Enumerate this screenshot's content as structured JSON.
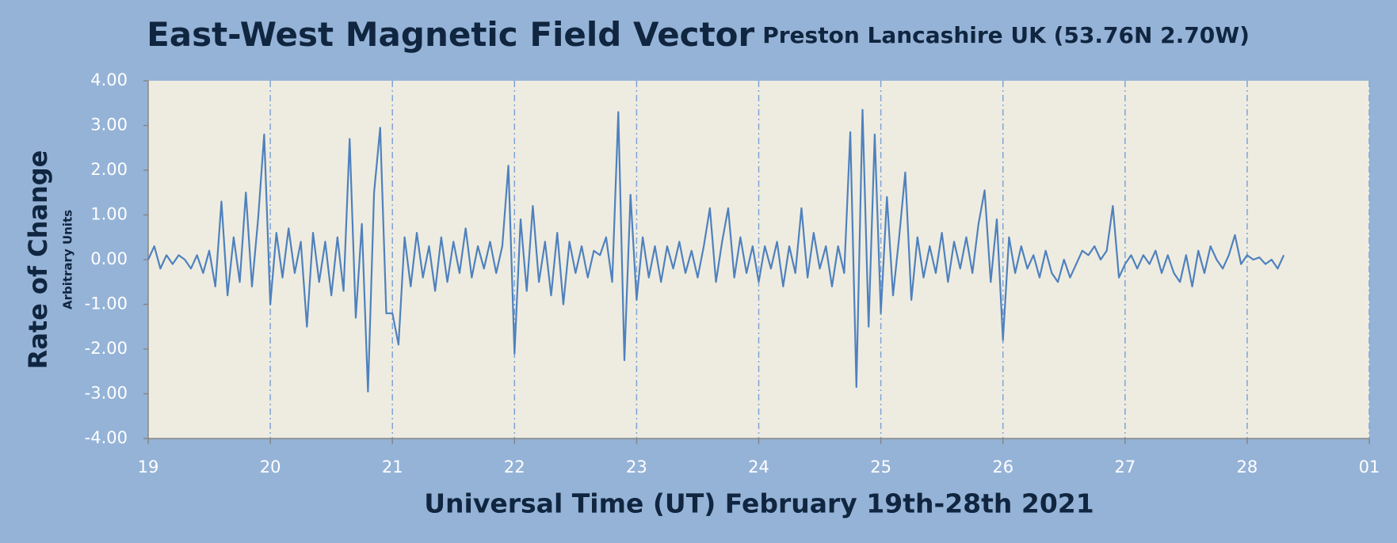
{
  "chart_data": {
    "type": "line",
    "title": "East-West Magnetic Field Vector",
    "subtitle": "Preston Lancashire UK (53.76N 2.70W)",
    "y_label": "Rate of Change",
    "y_sublabel": "Arbitrary Units",
    "x_label": "Universal Time (UT) February 19th-28th 2021",
    "color": "#4F81BD",
    "grid": true,
    "xlim": [
      19,
      29
    ],
    "xticks": [
      19,
      20,
      21,
      22,
      23,
      24,
      25,
      26,
      27,
      28,
      {
        "value": 29,
        "label": "01"
      }
    ],
    "ylim": [
      -4,
      4
    ],
    "yticks": [
      {
        "value": 4,
        "label": "4.00"
      },
      {
        "value": 3,
        "label": "3.00"
      },
      {
        "value": 2,
        "label": "2.00"
      },
      {
        "value": 1,
        "label": "1.00"
      },
      {
        "value": 0,
        "label": "0.00"
      },
      {
        "value": -1,
        "label": "-1.00"
      },
      {
        "value": -2,
        "label": "-2.00"
      },
      {
        "value": -3,
        "label": "-3.00"
      },
      {
        "value": -4,
        "label": "-4.00"
      }
    ],
    "x": [
      19,
      19.05,
      19.1,
      19.15,
      19.2,
      19.25,
      19.3,
      19.35,
      19.4,
      19.45,
      19.5,
      19.55,
      19.6,
      19.65,
      19.7,
      19.75,
      19.8,
      19.85,
      19.9,
      19.95,
      20,
      20.05,
      20.1,
      20.15,
      20.2,
      20.25,
      20.3,
      20.35,
      20.4,
      20.45,
      20.5,
      20.55,
      20.6,
      20.65,
      20.7,
      20.75,
      20.8,
      20.85,
      20.9,
      20.95,
      21,
      21.05,
      21.1,
      21.15,
      21.2,
      21.25,
      21.3,
      21.35,
      21.4,
      21.45,
      21.5,
      21.55,
      21.6,
      21.65,
      21.7,
      21.75,
      21.8,
      21.85,
      21.9,
      21.95,
      22,
      22.05,
      22.1,
      22.15,
      22.2,
      22.25,
      22.3,
      22.35,
      22.4,
      22.45,
      22.5,
      22.55,
      22.6,
      22.65,
      22.7,
      22.75,
      22.8,
      22.85,
      22.9,
      22.95,
      23,
      23.05,
      23.1,
      23.15,
      23.2,
      23.25,
      23.3,
      23.35,
      23.4,
      23.45,
      23.5,
      23.55,
      23.6,
      23.65,
      23.7,
      23.75,
      23.8,
      23.85,
      23.9,
      23.95,
      24,
      24.05,
      24.1,
      24.15,
      24.2,
      24.25,
      24.3,
      24.35,
      24.4,
      24.45,
      24.5,
      24.55,
      24.6,
      24.65,
      24.7,
      24.75,
      24.8,
      24.85,
      24.9,
      24.95,
      25,
      25.05,
      25.1,
      25.15,
      25.2,
      25.25,
      25.3,
      25.35,
      25.4,
      25.45,
      25.5,
      25.55,
      25.6,
      25.65,
      25.7,
      25.75,
      25.8,
      25.85,
      25.9,
      25.95,
      26,
      26.05,
      26.1,
      26.15,
      26.2,
      26.25,
      26.3,
      26.35,
      26.4,
      26.45,
      26.5,
      26.55,
      26.6,
      26.65,
      26.7,
      26.75,
      26.8,
      26.85,
      26.9,
      26.95,
      27,
      27.05,
      27.1,
      27.15,
      27.2,
      27.25,
      27.3,
      27.35,
      27.4,
      27.45,
      27.5,
      27.55,
      27.6,
      27.65,
      27.7,
      27.75,
      27.8,
      27.85,
      27.9,
      27.95,
      28,
      28.05,
      28.1,
      28.15,
      28.2,
      28.25,
      28.3
    ],
    "values": [
      0.0,
      0.3,
      -0.2,
      0.1,
      -0.1,
      0.1,
      0.0,
      -0.2,
      0.1,
      -0.3,
      0.2,
      -0.6,
      1.3,
      -0.8,
      0.5,
      -0.5,
      1.5,
      -0.6,
      0.9,
      2.8,
      -1.0,
      0.6,
      -0.4,
      0.7,
      -0.3,
      0.4,
      -1.5,
      0.6,
      -0.5,
      0.4,
      -0.8,
      0.5,
      -0.7,
      2.7,
      -1.3,
      0.8,
      -2.95,
      1.5,
      2.95,
      -1.2,
      -1.2,
      -1.9,
      0.5,
      -0.6,
      0.6,
      -0.4,
      0.3,
      -0.7,
      0.5,
      -0.5,
      0.4,
      -0.3,
      0.7,
      -0.4,
      0.3,
      -0.2,
      0.4,
      -0.3,
      0.3,
      2.1,
      -2.1,
      0.9,
      -0.7,
      1.2,
      -0.5,
      0.4,
      -0.8,
      0.6,
      -1.0,
      0.4,
      -0.3,
      0.3,
      -0.4,
      0.2,
      0.1,
      0.5,
      -0.5,
      3.3,
      -2.25,
      1.45,
      -0.9,
      0.5,
      -0.4,
      0.3,
      -0.5,
      0.3,
      -0.2,
      0.4,
      -0.3,
      0.2,
      -0.4,
      0.3,
      1.15,
      -0.5,
      0.4,
      1.15,
      -0.4,
      0.5,
      -0.3,
      0.3,
      -0.5,
      0.3,
      -0.2,
      0.4,
      -0.6,
      0.3,
      -0.3,
      1.15,
      -0.4,
      0.6,
      -0.2,
      0.3,
      -0.6,
      0.3,
      -0.3,
      2.85,
      -2.85,
      3.35,
      -1.5,
      2.8,
      -1.2,
      1.4,
      -0.8,
      0.5,
      1.95,
      -0.9,
      0.5,
      -0.4,
      0.3,
      -0.3,
      0.6,
      -0.5,
      0.4,
      -0.2,
      0.5,
      -0.3,
      0.8,
      1.55,
      -0.5,
      0.9,
      -1.8,
      0.5,
      -0.3,
      0.3,
      -0.2,
      0.1,
      -0.4,
      0.2,
      -0.3,
      -0.5,
      0.0,
      -0.4,
      -0.1,
      0.2,
      0.1,
      0.3,
      0.0,
      0.2,
      1.2,
      -0.4,
      -0.1,
      0.1,
      -0.2,
      0.1,
      -0.1,
      0.2,
      -0.3,
      0.1,
      -0.3,
      -0.5,
      0.1,
      -0.6,
      0.2,
      -0.3,
      0.3,
      0.0,
      -0.2,
      0.1,
      0.55,
      -0.1,
      0.1,
      0.0,
      0.05,
      -0.1,
      0.0,
      -0.2,
      0.1
    ]
  }
}
